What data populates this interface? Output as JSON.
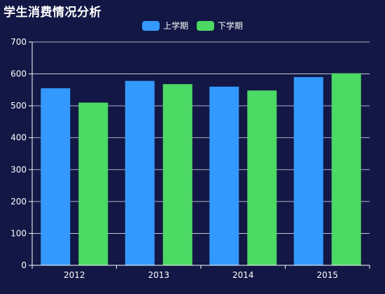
{
  "chart_data": {
    "type": "bar",
    "title": "学生消费情况分析",
    "xlabel": "",
    "ylabel": "",
    "categories": [
      "2012",
      "2013",
      "2014",
      "2015"
    ],
    "series": [
      {
        "name": "上学期",
        "values": [
          555,
          578,
          560,
          590
        ],
        "color": "#3399ff"
      },
      {
        "name": "下学期",
        "values": [
          510,
          568,
          548,
          602
        ],
        "color": "#4cd964"
      }
    ],
    "ylim": [
      0,
      700
    ],
    "yticks": [
      0,
      100,
      200,
      300,
      400,
      500,
      600,
      700
    ],
    "grid": true,
    "legend_position": "top-center"
  }
}
